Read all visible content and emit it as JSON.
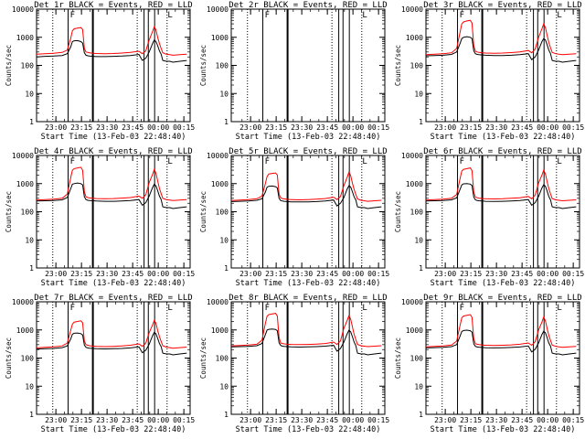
{
  "panel_titles": [
    "Det 1r  BLACK = Events, RED = LLD",
    "Det 2r  BLACK = Events, RED = LLD",
    "Det 3r  BLACK = Events, RED = LLD",
    "Det 4r  BLACK = Events, RED = LLD",
    "Det 5r  BLACK = Events, RED = LLD",
    "Det 6r  BLACK = Events, RED = LLD",
    "Det 7r  BLACK = Events, RED = LLD",
    "Det 8r  BLACK = Events, RED = LLD",
    "Det 9r  BLACK = Events, RED = LLD"
  ],
  "xlabel": "Start Time (13-Feb-03 22:48:40)",
  "ylabel": "Counts/sec",
  "x_tick_labels": [
    "23:00",
    "23:15",
    "23:30",
    "23:45",
    "00:00",
    "00:15"
  ],
  "y_tick_labels": [
    "1",
    "10",
    "100",
    "1000",
    "10000"
  ],
  "colors": {
    "events": "#000000",
    "lld": "#ff0000",
    "background": "#ffffff"
  },
  "chart_data": {
    "type": "line",
    "yscale": "log",
    "ylim": [
      1,
      10000
    ],
    "xlim_minutes_after_start": [
      0,
      90
    ],
    "x_tick_minutes_after_start": [
      11.33,
      26.33,
      41.33,
      56.33,
      71.33,
      86.33
    ],
    "grid": false,
    "series_names": {
      "events": "BLACK = Events",
      "lld": "RED = LLD"
    },
    "time_minutes_after_start": [
      0,
      5,
      10,
      15,
      18,
      20,
      21,
      22,
      24,
      26,
      27,
      28,
      29,
      30,
      31,
      33,
      35,
      40,
      45,
      50,
      55,
      60,
      62,
      64,
      66,
      68,
      69,
      70,
      71,
      72,
      73,
      74,
      76,
      78,
      80,
      84,
      88
    ],
    "panels": [
      {
        "detector": "1r",
        "events": [
          200,
          210,
          215,
          225,
          260,
          450,
          700,
          750,
          760,
          700,
          620,
          280,
          230,
          220,
          215,
          210,
          205,
          205,
          210,
          215,
          225,
          245,
          150,
          180,
          300,
          600,
          800,
          700,
          500,
          330,
          250,
          150,
          140,
          140,
          130,
          140,
          150
        ],
        "lld": [
          250,
          260,
          270,
          290,
          350,
          900,
          1700,
          2000,
          2100,
          2200,
          1900,
          400,
          300,
          290,
          280,
          270,
          265,
          260,
          265,
          275,
          290,
          320,
          260,
          330,
          800,
          1600,
          2400,
          1800,
          1000,
          600,
          400,
          280,
          250,
          240,
          230,
          240,
          250
        ]
      },
      {
        "detector": "2r",
        "events": [],
        "lld": []
      },
      {
        "detector": "3r",
        "events": [
          220,
          225,
          230,
          245,
          300,
          600,
          900,
          1000,
          1050,
          1000,
          900,
          330,
          260,
          245,
          240,
          235,
          230,
          225,
          225,
          230,
          240,
          260,
          160,
          200,
          350,
          700,
          900,
          800,
          550,
          350,
          260,
          150,
          140,
          140,
          130,
          140,
          150
        ],
        "lld": [
          240,
          250,
          260,
          280,
          400,
          1500,
          3000,
          3500,
          3800,
          4000,
          3200,
          500,
          320,
          300,
          290,
          280,
          275,
          270,
          275,
          285,
          300,
          340,
          280,
          380,
          1000,
          2000,
          3000,
          2200,
          1200,
          650,
          420,
          290,
          260,
          250,
          240,
          250,
          260
        ]
      },
      {
        "detector": "4r",
        "events": [
          240,
          245,
          250,
          265,
          320,
          650,
          950,
          1000,
          1050,
          1000,
          900,
          340,
          270,
          255,
          250,
          245,
          240,
          235,
          235,
          240,
          250,
          270,
          170,
          210,
          360,
          720,
          950,
          820,
          560,
          360,
          270,
          150,
          140,
          140,
          130,
          140,
          150
        ],
        "lld": [
          260,
          270,
          280,
          300,
          420,
          1600,
          3000,
          3400,
          3600,
          3800,
          3000,
          520,
          340,
          320,
          310,
          300,
          295,
          290,
          295,
          305,
          320,
          360,
          300,
          400,
          1100,
          2100,
          3200,
          2300,
          1250,
          680,
          440,
          300,
          270,
          260,
          250,
          260,
          270
        ]
      },
      {
        "detector": "5r",
        "events": [
          230,
          235,
          240,
          255,
          290,
          500,
          750,
          800,
          820,
          780,
          700,
          300,
          250,
          240,
          235,
          230,
          225,
          222,
          225,
          230,
          240,
          260,
          160,
          200,
          320,
          650,
          850,
          750,
          520,
          340,
          260,
          150,
          140,
          140,
          130,
          140,
          150
        ],
        "lld": [
          250,
          260,
          270,
          290,
          360,
          1000,
          1800,
          2200,
          2300,
          2400,
          2000,
          420,
          310,
          295,
          285,
          275,
          270,
          265,
          270,
          280,
          295,
          330,
          270,
          350,
          850,
          1700,
          2600,
          1900,
          1050,
          620,
          410,
          285,
          255,
          245,
          235,
          245,
          255
        ]
      },
      {
        "detector": "6r",
        "events": [
          240,
          245,
          250,
          265,
          310,
          620,
          900,
          980,
          1000,
          960,
          860,
          330,
          265,
          250,
          245,
          240,
          235,
          232,
          235,
          240,
          250,
          270,
          170,
          210,
          350,
          700,
          920,
          800,
          550,
          350,
          265,
          150,
          140,
          140,
          130,
          140,
          150
        ],
        "lld": [
          260,
          270,
          280,
          300,
          410,
          1500,
          2800,
          3200,
          3400,
          3600,
          2900,
          500,
          330,
          315,
          305,
          295,
          290,
          285,
          290,
          300,
          315,
          350,
          290,
          390,
          1050,
          2000,
          3000,
          2200,
          1200,
          660,
          430,
          295,
          265,
          255,
          245,
          255,
          265
        ]
      },
      {
        "detector": "7r",
        "events": [
          210,
          215,
          220,
          235,
          270,
          470,
          700,
          760,
          780,
          740,
          660,
          290,
          240,
          230,
          225,
          220,
          215,
          212,
          215,
          220,
          230,
          250,
          155,
          190,
          310,
          620,
          820,
          720,
          500,
          330,
          255,
          150,
          140,
          140,
          130,
          140,
          150
        ],
        "lld": [
          230,
          240,
          250,
          270,
          340,
          950,
          1600,
          1900,
          2000,
          2100,
          1800,
          400,
          300,
          285,
          275,
          265,
          260,
          255,
          260,
          270,
          285,
          320,
          260,
          340,
          800,
          1500,
          2200,
          1700,
          950,
          580,
          390,
          275,
          245,
          235,
          225,
          235,
          245
        ]
      },
      {
        "detector": "8r",
        "events": [
          250,
          255,
          260,
          275,
          330,
          680,
          1000,
          1050,
          1080,
          1040,
          940,
          350,
          280,
          265,
          260,
          255,
          250,
          246,
          250,
          255,
          265,
          285,
          175,
          220,
          370,
          740,
          980,
          850,
          580,
          370,
          275,
          150,
          140,
          140,
          130,
          140,
          150
        ],
        "lld": [
          270,
          280,
          290,
          310,
          430,
          1700,
          3100,
          3500,
          3700,
          3900,
          3100,
          530,
          345,
          330,
          320,
          310,
          305,
          300,
          305,
          315,
          330,
          370,
          305,
          410,
          1150,
          2200,
          3300,
          2400,
          1300,
          700,
          450,
          305,
          275,
          265,
          255,
          265,
          275
        ]
      },
      {
        "detector": "9r",
        "events": [
          230,
          235,
          240,
          255,
          300,
          600,
          880,
          950,
          980,
          940,
          840,
          320,
          260,
          248,
          243,
          238,
          233,
          230,
          233,
          238,
          248,
          268,
          165,
          205,
          345,
          690,
          900,
          790,
          540,
          345,
          262,
          150,
          140,
          140,
          130,
          140,
          150
        ],
        "lld": [
          250,
          260,
          270,
          290,
          400,
          1450,
          2700,
          3100,
          3300,
          3500,
          2800,
          490,
          325,
          310,
          300,
          290,
          285,
          280,
          285,
          295,
          310,
          345,
          285,
          380,
          1000,
          1900,
          2900,
          2100,
          1150,
          640,
          420,
          290,
          260,
          250,
          240,
          250,
          260
        ]
      }
    ]
  }
}
